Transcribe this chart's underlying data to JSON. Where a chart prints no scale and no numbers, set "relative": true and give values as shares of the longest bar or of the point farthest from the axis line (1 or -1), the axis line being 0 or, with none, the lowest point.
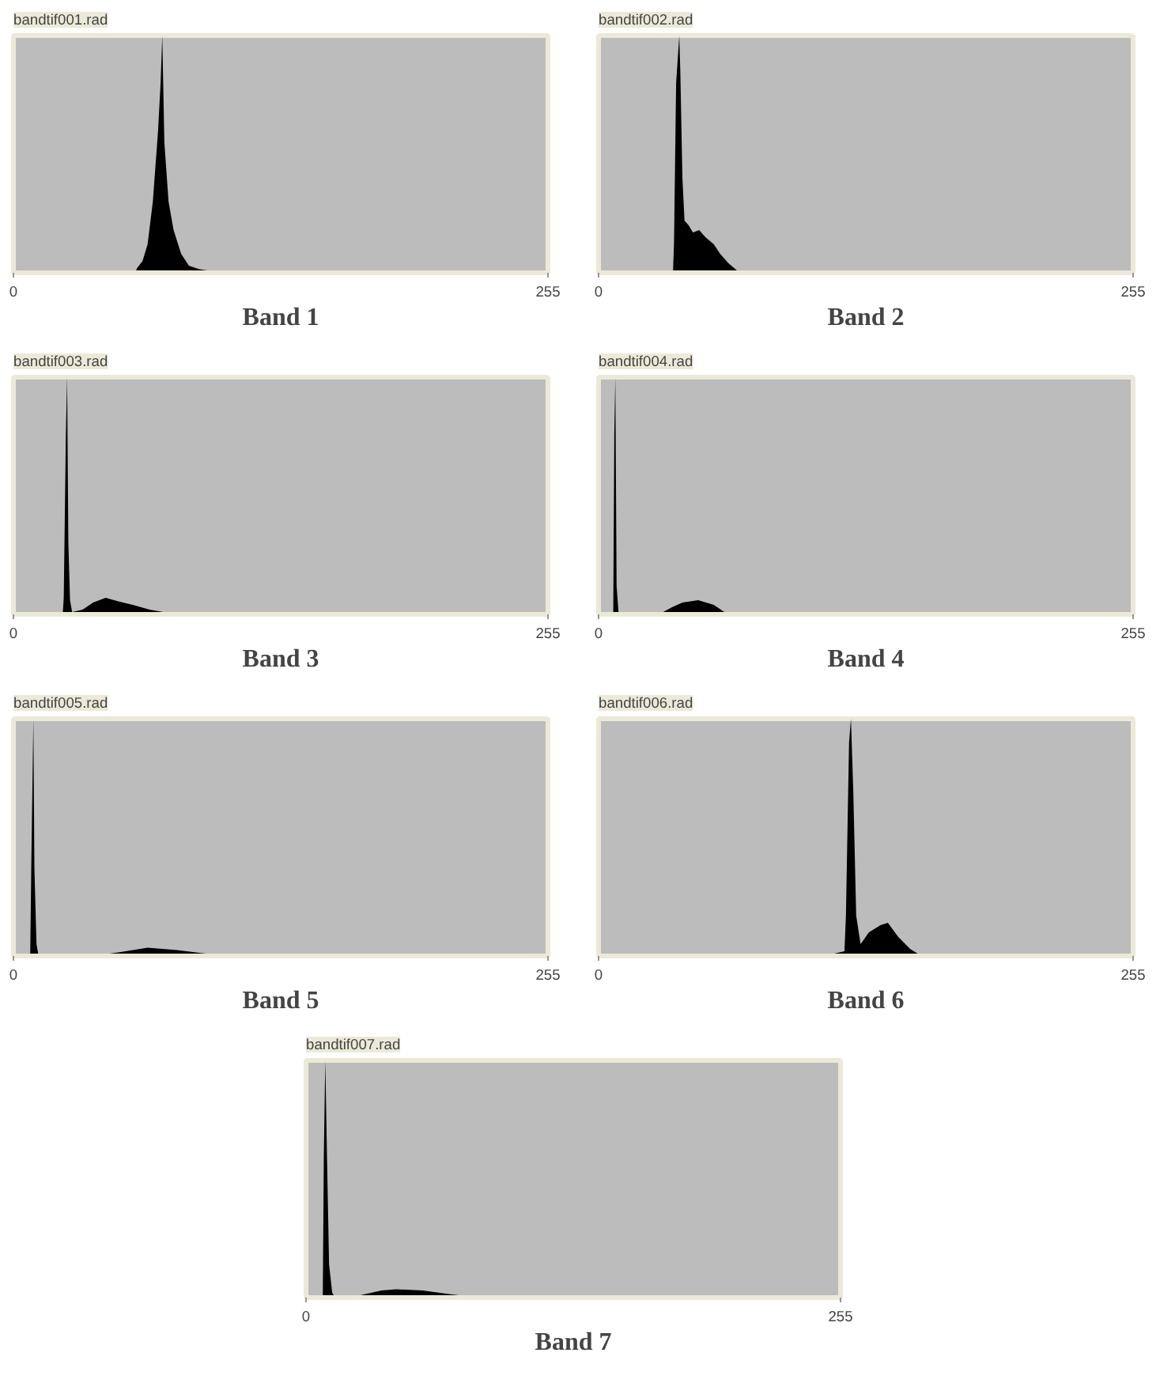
{
  "chart_data": [
    {
      "type": "area",
      "title": "bandtif001.rad",
      "xlabel": "Band 1",
      "relative": true,
      "color": "#000000",
      "xlim": [
        0,
        255
      ],
      "xticks": [
        0,
        255
      ],
      "tick_labels": "x",
      "x": [
        58,
        59,
        61.6,
        64,
        66.5,
        69,
        70.2,
        71,
        72,
        74,
        76.4,
        80,
        83.7,
        88.7,
        96,
        97
      ],
      "values": [
        0,
        0.02,
        0.05,
        0.12,
        0.3,
        0.6,
        0.8,
        1.0,
        0.55,
        0.3,
        0.18,
        0.08,
        0.03,
        0.015,
        0.005,
        0
      ]
    },
    {
      "type": "area",
      "title": "bandtif002.rad",
      "xlabel": "Band 2",
      "relative": true,
      "color": "#000000",
      "xlim": [
        0,
        255
      ],
      "xticks": [
        0,
        255
      ],
      "tick_labels": "x",
      "x": [
        35.5,
        36,
        37,
        38.5,
        39,
        40,
        41,
        43,
        45,
        48,
        51,
        55,
        58,
        62,
        66,
        75
      ],
      "values": [
        0,
        0.13,
        0.8,
        1.0,
        0.85,
        0.4,
        0.22,
        0.2,
        0.17,
        0.18,
        0.15,
        0.12,
        0.08,
        0.04,
        0.01,
        0
      ]
    },
    {
      "type": "area",
      "title": "bandtif003.rad",
      "xlabel": "Band 3",
      "relative": true,
      "color": "#000000",
      "xlim": [
        0,
        255
      ],
      "xticks": [
        0,
        255
      ],
      "tick_labels": "x",
      "x": [
        23.5,
        24,
        25,
        25.6,
        26.2,
        27,
        28,
        33,
        38,
        44,
        50,
        57,
        65,
        78
      ],
      "values": [
        0,
        0.07,
        0.75,
        1.0,
        0.3,
        0.06,
        0.01,
        0.02,
        0.05,
        0.07,
        0.055,
        0.04,
        0.02,
        0
      ]
    },
    {
      "type": "area",
      "title": "bandtif004.rad",
      "xlabel": "Band 4",
      "relative": true,
      "color": "#000000",
      "xlim": [
        0,
        255
      ],
      "xticks": [
        0,
        255
      ],
      "tick_labels": "x",
      "x": [
        7,
        7.5,
        8,
        8.6,
        9.5,
        10,
        28.7,
        35,
        40,
        47.5,
        55,
        60,
        77.5
      ],
      "values": [
        0,
        0.76,
        1.0,
        0.12,
        0.01,
        0,
        0,
        0.03,
        0.05,
        0.06,
        0.04,
        0.01,
        0
      ]
    },
    {
      "type": "area",
      "title": "bandtif005.rad",
      "xlabel": "Band 5",
      "relative": true,
      "color": "#000000",
      "xlim": [
        0,
        255
      ],
      "xticks": [
        0,
        255
      ],
      "tick_labels": "x",
      "x": [
        8,
        8.5,
        9.5,
        10,
        11,
        12,
        37.7,
        50,
        64,
        78,
        92,
        106
      ],
      "values": [
        0,
        0.37,
        1.0,
        0.37,
        0.05,
        0,
        0,
        0.015,
        0.035,
        0.025,
        0.01,
        0
      ]
    },
    {
      "type": "area",
      "title": "bandtif006.rad",
      "xlabel": "Band 6",
      "relative": true,
      "color": "#000000",
      "xlim": [
        0,
        255
      ],
      "xticks": [
        0,
        255
      ],
      "tick_labels": "x",
      "x": [
        100,
        110,
        117.3,
        118,
        119.5,
        120.4,
        121.5,
        122.9,
        125,
        129,
        134.5,
        138,
        143,
        148.6,
        154
      ],
      "values": [
        0,
        0.005,
        0.02,
        0.17,
        0.9,
        1.0,
        0.7,
        0.17,
        0.05,
        0.1,
        0.13,
        0.14,
        0.08,
        0.03,
        0
      ]
    },
    {
      "type": "area",
      "title": "bandtif007.rad",
      "xlabel": "Band 7",
      "relative": true,
      "color": "#000000",
      "xlim": [
        0,
        255
      ],
      "xticks": [
        0,
        255
      ],
      "tick_labels": "x",
      "x": [
        8,
        8.5,
        9.2,
        10,
        11,
        12.5,
        14,
        21,
        36,
        43,
        55.7,
        68,
        83
      ],
      "values": [
        0,
        0.6,
        1.0,
        0.6,
        0.14,
        0.02,
        0,
        0,
        0.03,
        0.035,
        0.03,
        0.015,
        0
      ]
    }
  ]
}
